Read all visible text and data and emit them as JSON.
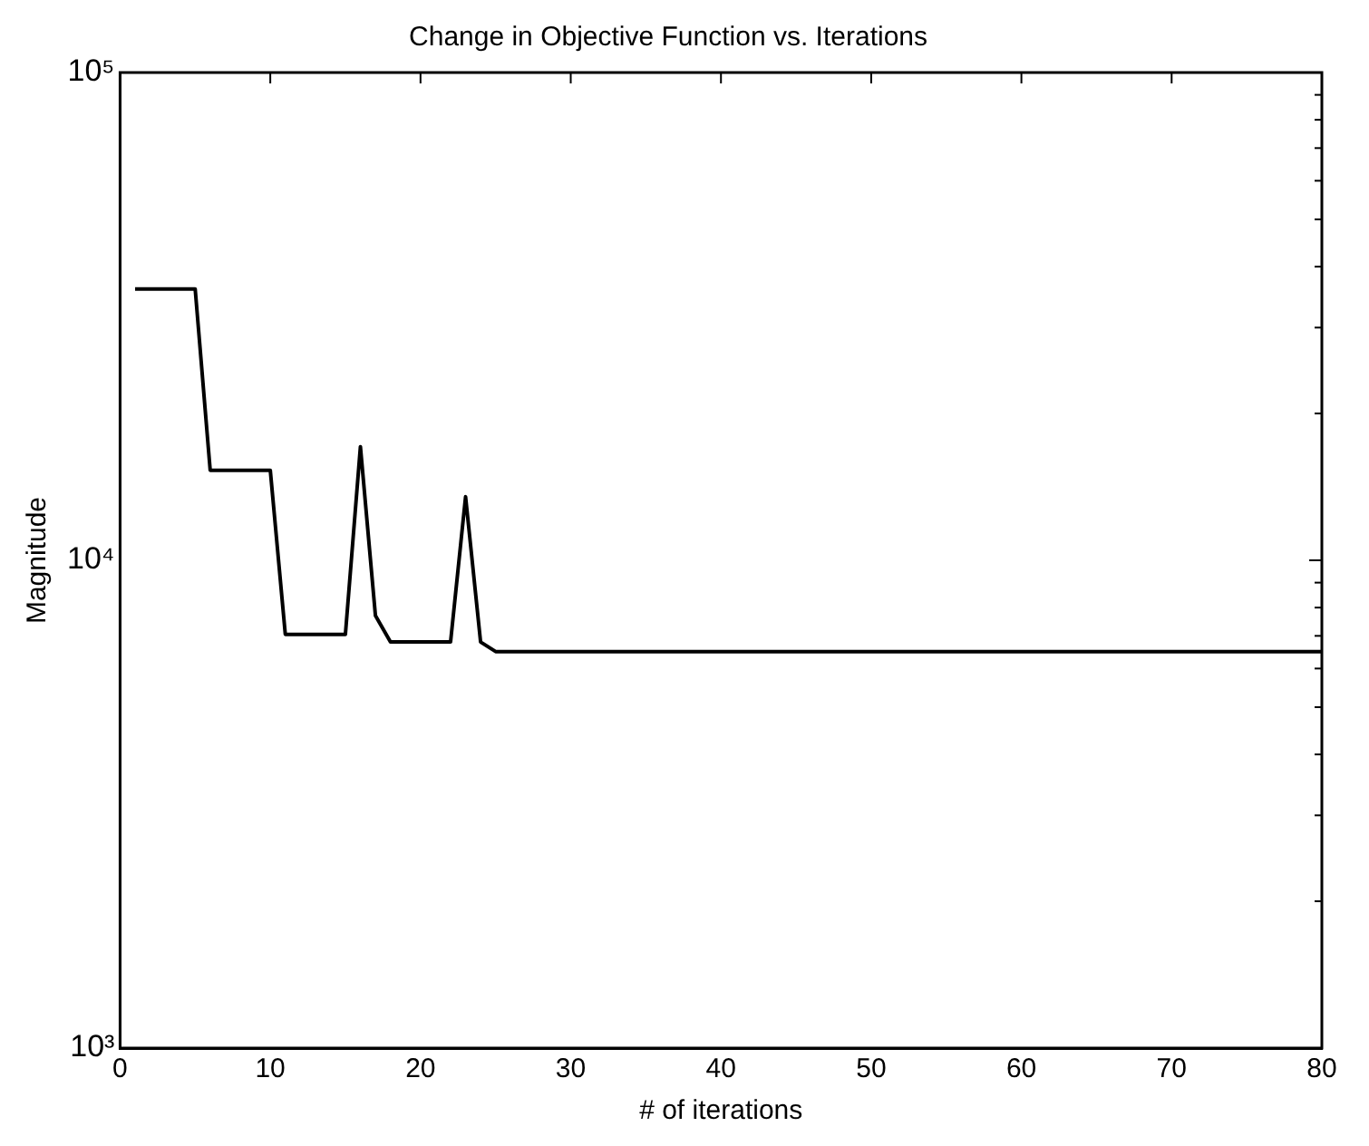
{
  "chart_data": {
    "type": "line",
    "title": "Change in Objective Function vs. Iterations",
    "xlabel": "# of iterations",
    "ylabel": "Magnitude",
    "log": "y",
    "grid": false,
    "marker": "none",
    "line_style": "solid",
    "series": [
      {
        "color": "#000000",
        "x": [
          1,
          5,
          6,
          10,
          11,
          15,
          16,
          17,
          18,
          22,
          23,
          24,
          25,
          80
        ],
        "values": [
          36000,
          36000,
          15300,
          15300,
          7050,
          7050,
          17100,
          7700,
          6800,
          6800,
          13500,
          6800,
          6500,
          6500
        ]
      }
    ],
    "xlim": [
      0,
      80
    ],
    "xticks": [
      0,
      10,
      20,
      30,
      40,
      50,
      60,
      70,
      80
    ],
    "ylim": [
      1000,
      100000
    ],
    "yticks": [
      {
        "value": 1000,
        "label": "10³"
      },
      {
        "value": 2000,
        "label": null
      },
      {
        "value": 3000,
        "label": null
      },
      {
        "value": 4000,
        "label": null
      },
      {
        "value": 5000,
        "label": null
      },
      {
        "value": 6000,
        "label": null
      },
      {
        "value": 7000,
        "label": null
      },
      {
        "value": 8000,
        "label": null
      },
      {
        "value": 9000,
        "label": null
      },
      {
        "value": 10000,
        "label": "10⁴"
      },
      {
        "value": 20000,
        "label": null
      },
      {
        "value": 30000,
        "label": null
      },
      {
        "value": 40000,
        "label": null
      },
      {
        "value": 50000,
        "label": null
      },
      {
        "value": 60000,
        "label": null
      },
      {
        "value": 70000,
        "label": null
      },
      {
        "value": 80000,
        "label": null
      },
      {
        "value": 90000,
        "label": null
      },
      {
        "value": 100000,
        "label": "10⁵"
      }
    ]
  }
}
